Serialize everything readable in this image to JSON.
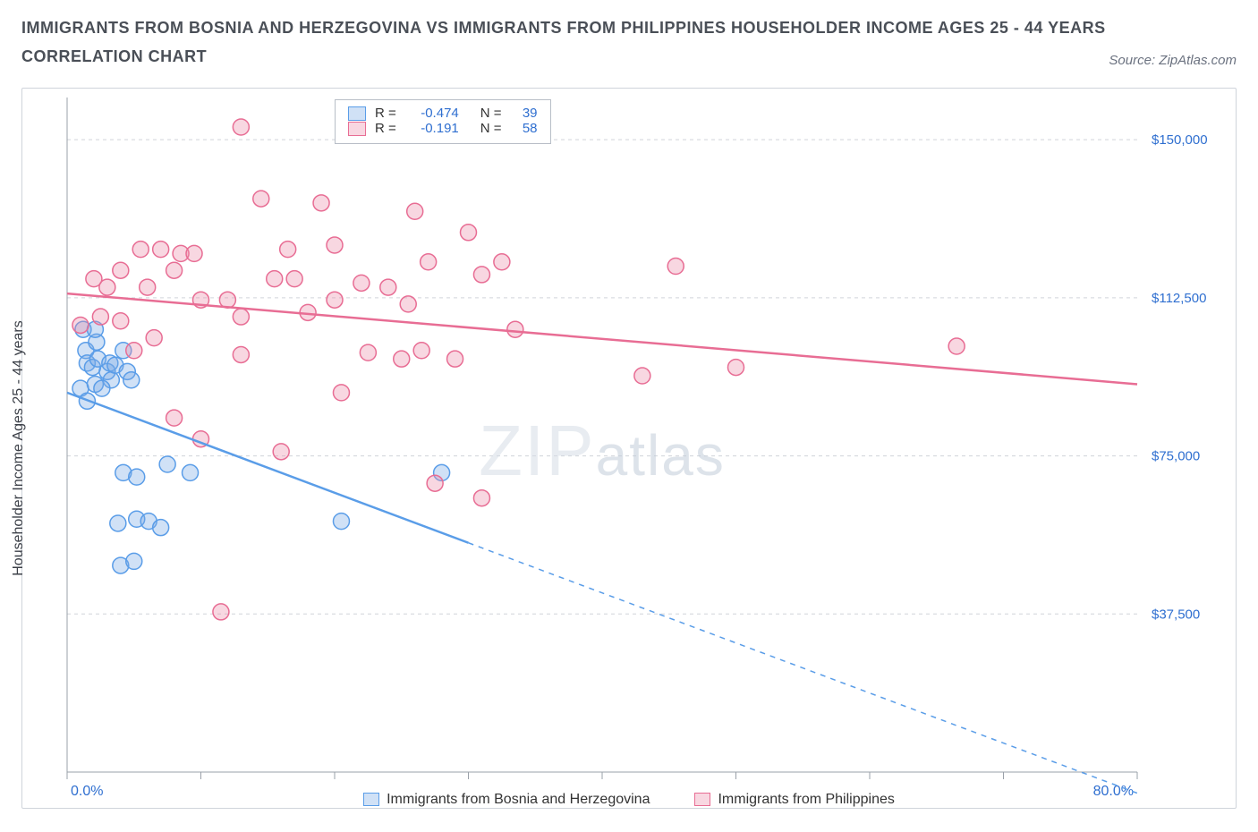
{
  "title": "IMMIGRANTS FROM BOSNIA AND HERZEGOVINA VS IMMIGRANTS FROM PHILIPPINES HOUSEHOLDER INCOME AGES 25 - 44 YEARS",
  "subtitle": "CORRELATION CHART",
  "source_label": "Source: ",
  "source_name": "ZipAtlas.com",
  "ylabel": "Householder Income Ages 25 - 44 years",
  "watermark_a": "ZIP",
  "watermark_b": "atlas",
  "chart": {
    "type": "scatter",
    "xlim": [
      0,
      80
    ],
    "ylim": [
      0,
      160000
    ],
    "x_ticks": [
      0,
      10,
      20,
      30,
      40,
      50,
      60,
      70,
      80
    ],
    "x_tick_labels": {
      "0": "0.0%",
      "80": "80.0%"
    },
    "y_ticks": [
      37500,
      75000,
      112500,
      150000
    ],
    "y_tick_labels": [
      "$37,500",
      "$75,000",
      "$112,500",
      "$150,000"
    ],
    "grid_color": "#d0d4da",
    "background_color": "#ffffff",
    "marker_radius": 9,
    "marker_stroke_width": 1.5,
    "line_width": 2.5,
    "series": [
      {
        "key": "bosnia",
        "label": "Immigrants from Bosnia and Herzegovina",
        "color": "#5a9de8",
        "fill": "rgba(120,170,230,0.35)",
        "R": "-0.474",
        "N": "39",
        "trend": {
          "x1": 0,
          "y1": 90000,
          "x2": 80,
          "y2": -5000,
          "solid_until_x": 30
        },
        "points": [
          [
            1.2,
            105000
          ],
          [
            1.4,
            100000
          ],
          [
            1.5,
            97000
          ],
          [
            1.9,
            96000
          ],
          [
            2.3,
            98000
          ],
          [
            2.2,
            102000
          ],
          [
            3.0,
            95000
          ],
          [
            3.3,
            93000
          ],
          [
            3.2,
            97000
          ],
          [
            3.6,
            96500
          ],
          [
            4.5,
            95000
          ],
          [
            4.2,
            100000
          ],
          [
            2.1,
            92000
          ],
          [
            2.6,
            91000
          ],
          [
            1.0,
            91000
          ],
          [
            1.5,
            88000
          ],
          [
            4.8,
            93000
          ],
          [
            4.2,
            71000
          ],
          [
            5.2,
            70000
          ],
          [
            7.5,
            73000
          ],
          [
            9.2,
            71000
          ],
          [
            5.2,
            60000
          ],
          [
            6.1,
            59500
          ],
          [
            3.8,
            59000
          ],
          [
            4.0,
            49000
          ],
          [
            5.0,
            50000
          ],
          [
            7.0,
            58000
          ],
          [
            20.5,
            59500
          ],
          [
            28.0,
            71000
          ],
          [
            2.1,
            105000
          ]
        ]
      },
      {
        "key": "philippines",
        "label": "Immigrants from Philippines",
        "color": "#e86d94",
        "fill": "rgba(235,140,170,0.35)",
        "R": "-0.191",
        "N": "58",
        "trend": {
          "x1": 0,
          "y1": 113500,
          "x2": 80,
          "y2": 92000,
          "solid_until_x": 80
        },
        "points": [
          [
            13.0,
            153000
          ],
          [
            14.5,
            136000
          ],
          [
            19.0,
            135000
          ],
          [
            20.0,
            125000
          ],
          [
            26.0,
            133000
          ],
          [
            30.0,
            128000
          ],
          [
            31.0,
            118000
          ],
          [
            5.5,
            124000
          ],
          [
            7.0,
            124000
          ],
          [
            8.0,
            119000
          ],
          [
            8.5,
            123000
          ],
          [
            9.5,
            123000
          ],
          [
            2.0,
            117000
          ],
          [
            3.0,
            115000
          ],
          [
            4.0,
            119000
          ],
          [
            6.0,
            115000
          ],
          [
            10.0,
            112000
          ],
          [
            12.0,
            112000
          ],
          [
            13.0,
            108000
          ],
          [
            15.5,
            117000
          ],
          [
            16.5,
            124000
          ],
          [
            17.0,
            117000
          ],
          [
            18.0,
            109000
          ],
          [
            20.0,
            112000
          ],
          [
            22.0,
            116000
          ],
          [
            24.0,
            115000
          ],
          [
            25.5,
            111000
          ],
          [
            27.0,
            121000
          ],
          [
            32.5,
            121000
          ],
          [
            1.0,
            106000
          ],
          [
            2.5,
            108000
          ],
          [
            4.0,
            107000
          ],
          [
            5.0,
            100000
          ],
          [
            6.5,
            103000
          ],
          [
            8.0,
            84000
          ],
          [
            10.0,
            79000
          ],
          [
            13.0,
            99000
          ],
          [
            16.0,
            76000
          ],
          [
            22.5,
            99500
          ],
          [
            25.0,
            98000
          ],
          [
            26.5,
            100000
          ],
          [
            29.0,
            98000
          ],
          [
            33.5,
            105000
          ],
          [
            20.5,
            90000
          ],
          [
            27.5,
            68500
          ],
          [
            31.0,
            65000
          ],
          [
            43.0,
            94000
          ],
          [
            50.0,
            96000
          ],
          [
            66.5,
            101000
          ],
          [
            11.5,
            38000
          ],
          [
            45.5,
            120000
          ]
        ]
      }
    ],
    "legend_box": {
      "label_R": "R =",
      "label_N": "N ="
    }
  }
}
